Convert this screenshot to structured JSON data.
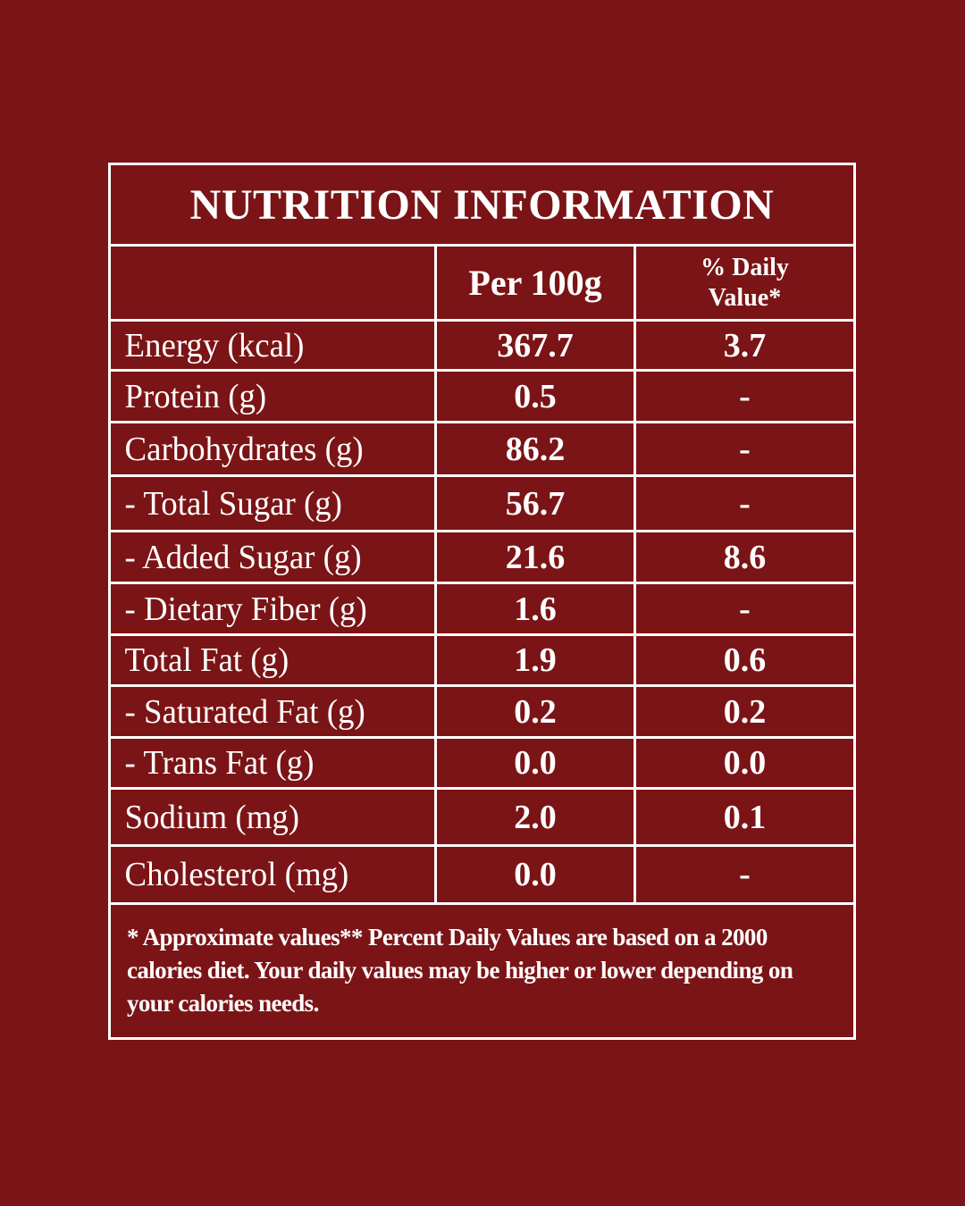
{
  "table": {
    "title": "NUTRITION INFORMATION",
    "columns": [
      "Per 100g",
      "% Daily Value*"
    ],
    "rows": [
      [
        "Energy (kcal)",
        "367.7",
        "3.7"
      ],
      [
        "Protein (g)",
        "0.5",
        "-"
      ],
      [
        "Carbohydrates (g)",
        "86.2",
        "-"
      ],
      [
        "- Total Sugar (g)",
        "56.7",
        "-"
      ],
      [
        "- Added Sugar (g)",
        "21.6",
        "8.6"
      ],
      [
        "- Dietary Fiber (g)",
        "1.6",
        "-"
      ],
      [
        "Total Fat (g)",
        "1.9",
        "0.6"
      ],
      [
        "- Saturated Fat (g)",
        "0.2",
        "0.2"
      ],
      [
        "- Trans Fat (g)",
        "0.0",
        "0.0"
      ],
      [
        "Sodium (mg)",
        "2.0",
        "0.1"
      ],
      [
        "Cholesterol (mg)",
        "0.0",
        "-"
      ]
    ],
    "footnote": "* Approximate values** Percent Daily Values are based on a 2000 calories diet. Your daily values may be higher or lower depending on your calories needs."
  }
}
